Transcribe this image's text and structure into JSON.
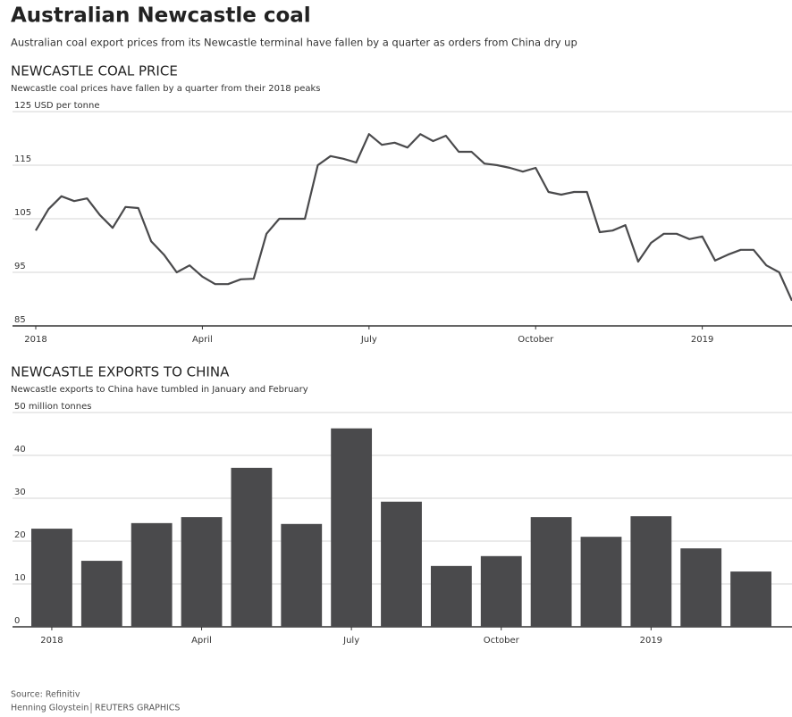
{
  "header": {
    "title": "Australian Newcastle coal",
    "subtitle": "Australian coal export prices from its Newcastle terminal have fallen by a quarter as orders from China dry up"
  },
  "chart_data": [
    {
      "type": "line",
      "title": "NEWCASTLE COAL PRICE",
      "subtitle": "Newcastle coal prices have fallen by a quarter from their 2018 peaks",
      "categories": [
        "2018",
        null,
        null,
        null,
        null,
        null,
        null,
        null,
        null,
        null,
        null,
        null,
        null,
        "April",
        null,
        null,
        null,
        null,
        null,
        null,
        null,
        null,
        null,
        null,
        null,
        null,
        "July",
        null,
        null,
        null,
        null,
        null,
        null,
        null,
        null,
        null,
        null,
        null,
        null,
        "October",
        null,
        null,
        null,
        null,
        null,
        null,
        null,
        null,
        null,
        null,
        null,
        null,
        "2019",
        null,
        null,
        null,
        null,
        null,
        null,
        null
      ],
      "values": [
        102.8,
        106.8,
        109.2,
        108.3,
        108.8,
        105.7,
        103.3,
        107.2,
        107,
        100.8,
        98.3,
        95,
        96.3,
        94.2,
        92.8,
        92.8,
        93.7,
        93.8,
        102.2,
        105,
        105,
        105,
        115,
        116.7,
        116.2,
        115.5,
        120.8,
        118.8,
        119.2,
        118.3,
        120.8,
        119.5,
        120.5,
        117.5,
        117.5,
        115.3,
        115,
        114.5,
        113.8,
        114.5,
        110,
        109.5,
        110,
        110,
        102.5,
        102.8,
        103.8,
        97,
        100.5,
        102.2,
        102.2,
        101.2,
        101.7,
        97.2,
        98.3,
        99.2,
        99.2,
        96.3,
        95,
        89.7
      ],
      "color": "#4a4a4c",
      "ylim": [
        85,
        125
      ],
      "yticks": [
        85,
        95,
        105,
        115,
        {
          "value": 125,
          "label": "125 USD per tonne"
        }
      ],
      "grid": true
    },
    {
      "type": "bar",
      "title": "NEWCASTLE EXPORTS TO CHINA",
      "subtitle": "Newcastle exports to China have tumbled in January and February",
      "categories": [
        "2018",
        null,
        null,
        "April",
        null,
        null,
        "July",
        null,
        null,
        "October",
        null,
        null,
        "2019",
        null,
        null
      ],
      "values": [
        22.9,
        15.4,
        24.2,
        25.6,
        37.1,
        24,
        46.3,
        29.2,
        14.2,
        16.5,
        25.6,
        21,
        25.8,
        18.3,
        12.9
      ],
      "color": "#4a4a4c",
      "ylim": [
        0,
        50
      ],
      "yticks": [
        0,
        10,
        20,
        30,
        40,
        {
          "value": 50,
          "label": "50 million tonnes"
        }
      ],
      "grid": true
    }
  ],
  "footer": {
    "source": "Source: Refinitiv",
    "credit": "Henning Gloystein",
    "agency": "REUTERS GRAPHICS"
  }
}
